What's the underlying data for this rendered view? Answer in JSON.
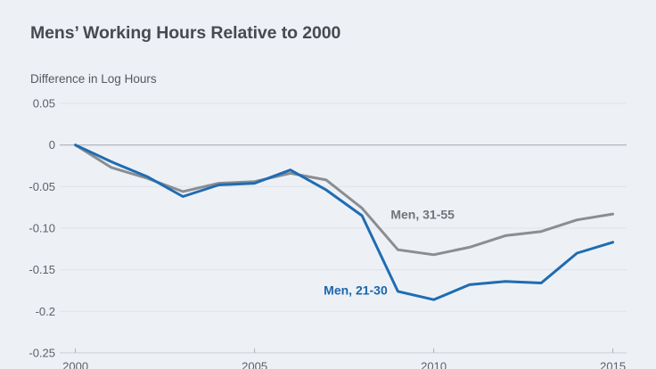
{
  "title": "Mens’ Working Hours Relative to 2000",
  "colors": {
    "background": "#edf1f6",
    "title_text": "#474b51",
    "axis_text": "#5d6167",
    "grid": "#dfe3e8",
    "zero_line": "#a3a8ad",
    "baseline": "#c9ced4",
    "tick_mark": "#aab0b6",
    "series_gray": "#8a8d91",
    "series_gray_label": "#71757a",
    "series_blue": "#1f6cb2",
    "series_blue_label": "#1b66ab"
  },
  "chart_data": {
    "type": "line",
    "title": "Mens’ Working Hours Relative to 2000",
    "ylabel": "Difference in Log Hours",
    "xlabel": "",
    "grid": true,
    "legend_position": "inline-annotations",
    "xlim": [
      2000,
      2015
    ],
    "ylim": [
      -0.25,
      0.05
    ],
    "x": [
      2000,
      2001,
      2002,
      2003,
      2004,
      2005,
      2006,
      2007,
      2008,
      2009,
      2010,
      2011,
      2012,
      2013,
      2014,
      2015
    ],
    "series": [
      {
        "name": "Men, 31-55",
        "values": [
          0,
          -0.027,
          -0.04,
          -0.056,
          -0.046,
          -0.044,
          -0.034,
          -0.042,
          -0.076,
          -0.126,
          -0.132,
          -0.123,
          -0.109,
          -0.104,
          -0.09,
          -0.083
        ]
      },
      {
        "name": "Men, 21-30",
        "values": [
          0,
          -0.02,
          -0.038,
          -0.062,
          -0.048,
          -0.046,
          -0.03,
          -0.054,
          -0.085,
          -0.176,
          -0.186,
          -0.168,
          -0.164,
          -0.166,
          -0.13,
          -0.117
        ]
      }
    ],
    "y_ticks": [
      {
        "label": "0.05",
        "value": 0.05
      },
      {
        "label": "0",
        "value": 0
      },
      {
        "label": "-0.05",
        "value": -0.05
      },
      {
        "label": "-0.10",
        "value": -0.1
      },
      {
        "label": "-0.15",
        "value": -0.15
      },
      {
        "label": "-0.2",
        "value": -0.2
      },
      {
        "label": "-0.25",
        "value": -0.25
      }
    ],
    "x_ticks": [
      {
        "label": "2000",
        "value": 2000
      },
      {
        "label": "2005",
        "value": 2005
      },
      {
        "label": "2010",
        "value": 2010
      },
      {
        "label": "2015",
        "value": 2015
      }
    ],
    "annotations": [
      {
        "text": "Men, 31-55",
        "series": "Men, 31-55",
        "x": 2008.8,
        "y": -0.089
      },
      {
        "text": "Men, 21-30",
        "series": "Men, 21-30",
        "x": 2006.93,
        "y": -0.18
      }
    ]
  }
}
